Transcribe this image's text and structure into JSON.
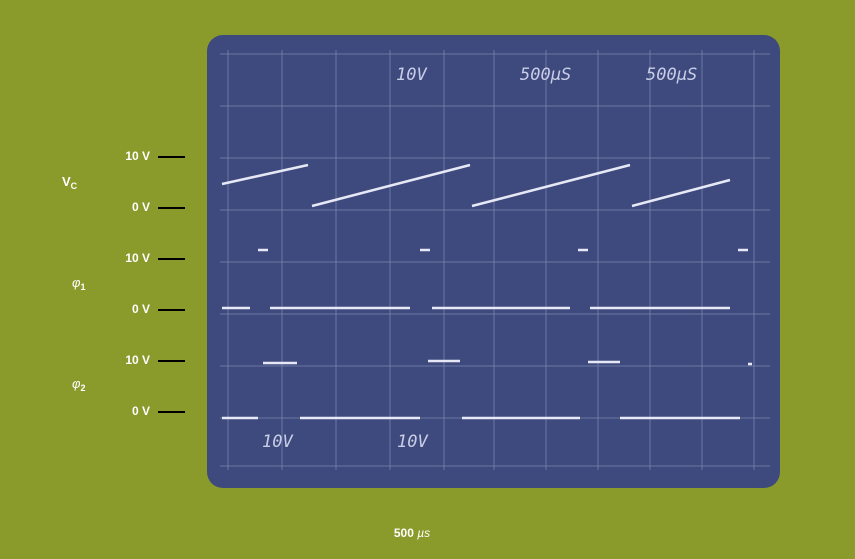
{
  "traces": [
    {
      "name": "V",
      "subscript": "C",
      "high": "10 V",
      "low": "0 V"
    },
    {
      "name": "φ",
      "subscript": "1",
      "high": "10 V",
      "low": "0 V"
    },
    {
      "name": "φ",
      "subscript": "2",
      "high": "10 V",
      "low": "0 V"
    }
  ],
  "screen_text": {
    "top": [
      "10V",
      "500µS",
      "500µS"
    ],
    "bottom": [
      "10V",
      "10V"
    ]
  },
  "timebase": {
    "prefix": "500 ",
    "unit": "µs"
  }
}
